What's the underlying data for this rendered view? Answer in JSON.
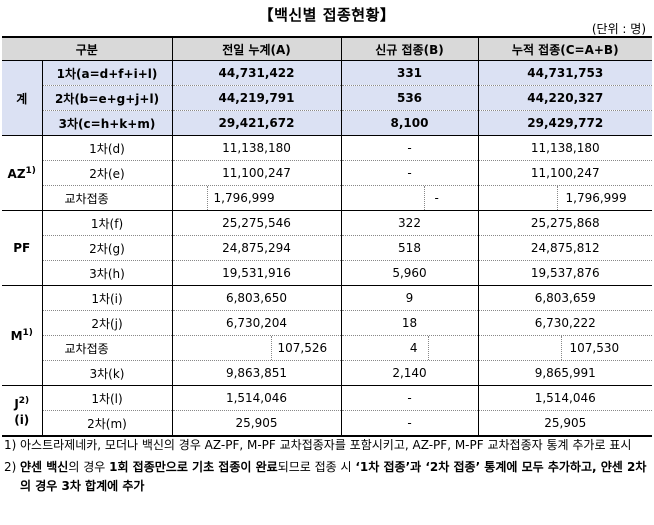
{
  "title": "【백신별 접종현황】",
  "unit": "(단위 : 명)",
  "columns": [
    "구분",
    "전일 누계(A)",
    "신규 접종(B)",
    "누적 접종(C=A+B)"
  ],
  "total": {
    "label": "계",
    "rows": [
      {
        "label": "1차(a=d+f+i+l)",
        "prev": "44,731,422",
        "new": "331",
        "cum": "44,731,753"
      },
      {
        "label": "2차(b=e+g+j+l)",
        "prev": "44,219,791",
        "new": "536",
        "cum": "44,220,327"
      },
      {
        "label": "3차(c=h+k+m)",
        "prev": "29,421,672",
        "new": "8,100",
        "cum": "29,429,772"
      }
    ]
  },
  "az": {
    "label": "AZ",
    "sup": "1)",
    "rows": [
      {
        "label": "1차(d)",
        "prev": "11,138,180",
        "new": "-",
        "cum": "11,138,180"
      },
      {
        "label": "2차(e)",
        "prev": "11,100,247",
        "new": "-",
        "cum": "11,100,247"
      }
    ],
    "cross": {
      "label": "교차접종",
      "prev": "1,796,999",
      "new": "-",
      "cum": "1,796,999"
    }
  },
  "pf": {
    "label": "PF",
    "rows": [
      {
        "label": "1차(f)",
        "prev": "25,275,546",
        "new": "322",
        "cum": "25,275,868"
      },
      {
        "label": "2차(g)",
        "prev": "24,875,294",
        "new": "518",
        "cum": "24,875,812"
      },
      {
        "label": "3차(h)",
        "prev": "19,531,916",
        "new": "5,960",
        "cum": "19,537,876"
      }
    ]
  },
  "m": {
    "label": "M",
    "sup": "1)",
    "rows": [
      {
        "label": "1차(i)",
        "prev": "6,803,650",
        "new": "9",
        "cum": "6,803,659"
      },
      {
        "label": "2차(j)",
        "prev": "6,730,204",
        "new": "18",
        "cum": "6,730,222"
      }
    ],
    "cross": {
      "label": "교차접종",
      "prev": "107,526",
      "new": "4",
      "cum": "107,530"
    },
    "row3": {
      "label": "3차(k)",
      "prev": "9,863,851",
      "new": "2,140",
      "cum": "9,865,991"
    }
  },
  "j": {
    "label": "J",
    "sup": "2)",
    "label2": "(i)",
    "rows": [
      {
        "label": "1차(l)",
        "prev": "1,514,046",
        "new": "-",
        "cum": "1,514,046"
      },
      {
        "label": "2차(m)",
        "prev": "25,905",
        "new": "-",
        "cum": "25,905"
      }
    ]
  },
  "notes": {
    "n1_num": "1)",
    "n1_text": "아스트라제네카, 모더나 백신의 경우 AZ-PF, M-PF 교차접종자를 포함시키고, AZ-PF, M-PF 교차접종자 통계 추가로 표시",
    "n2_num": "2)",
    "n2_a": "얀센 백신",
    "n2_b": "의 경우 ",
    "n2_c": "1회 접종만으로 기초 접종이 완료",
    "n2_d": "되므로 접종 시 ",
    "n2_e": "‘1차 접종’과 ‘2차 접종’ 통계에 모두 추가하고, 얀센 2차의 경우 3차 합계에 추가"
  }
}
